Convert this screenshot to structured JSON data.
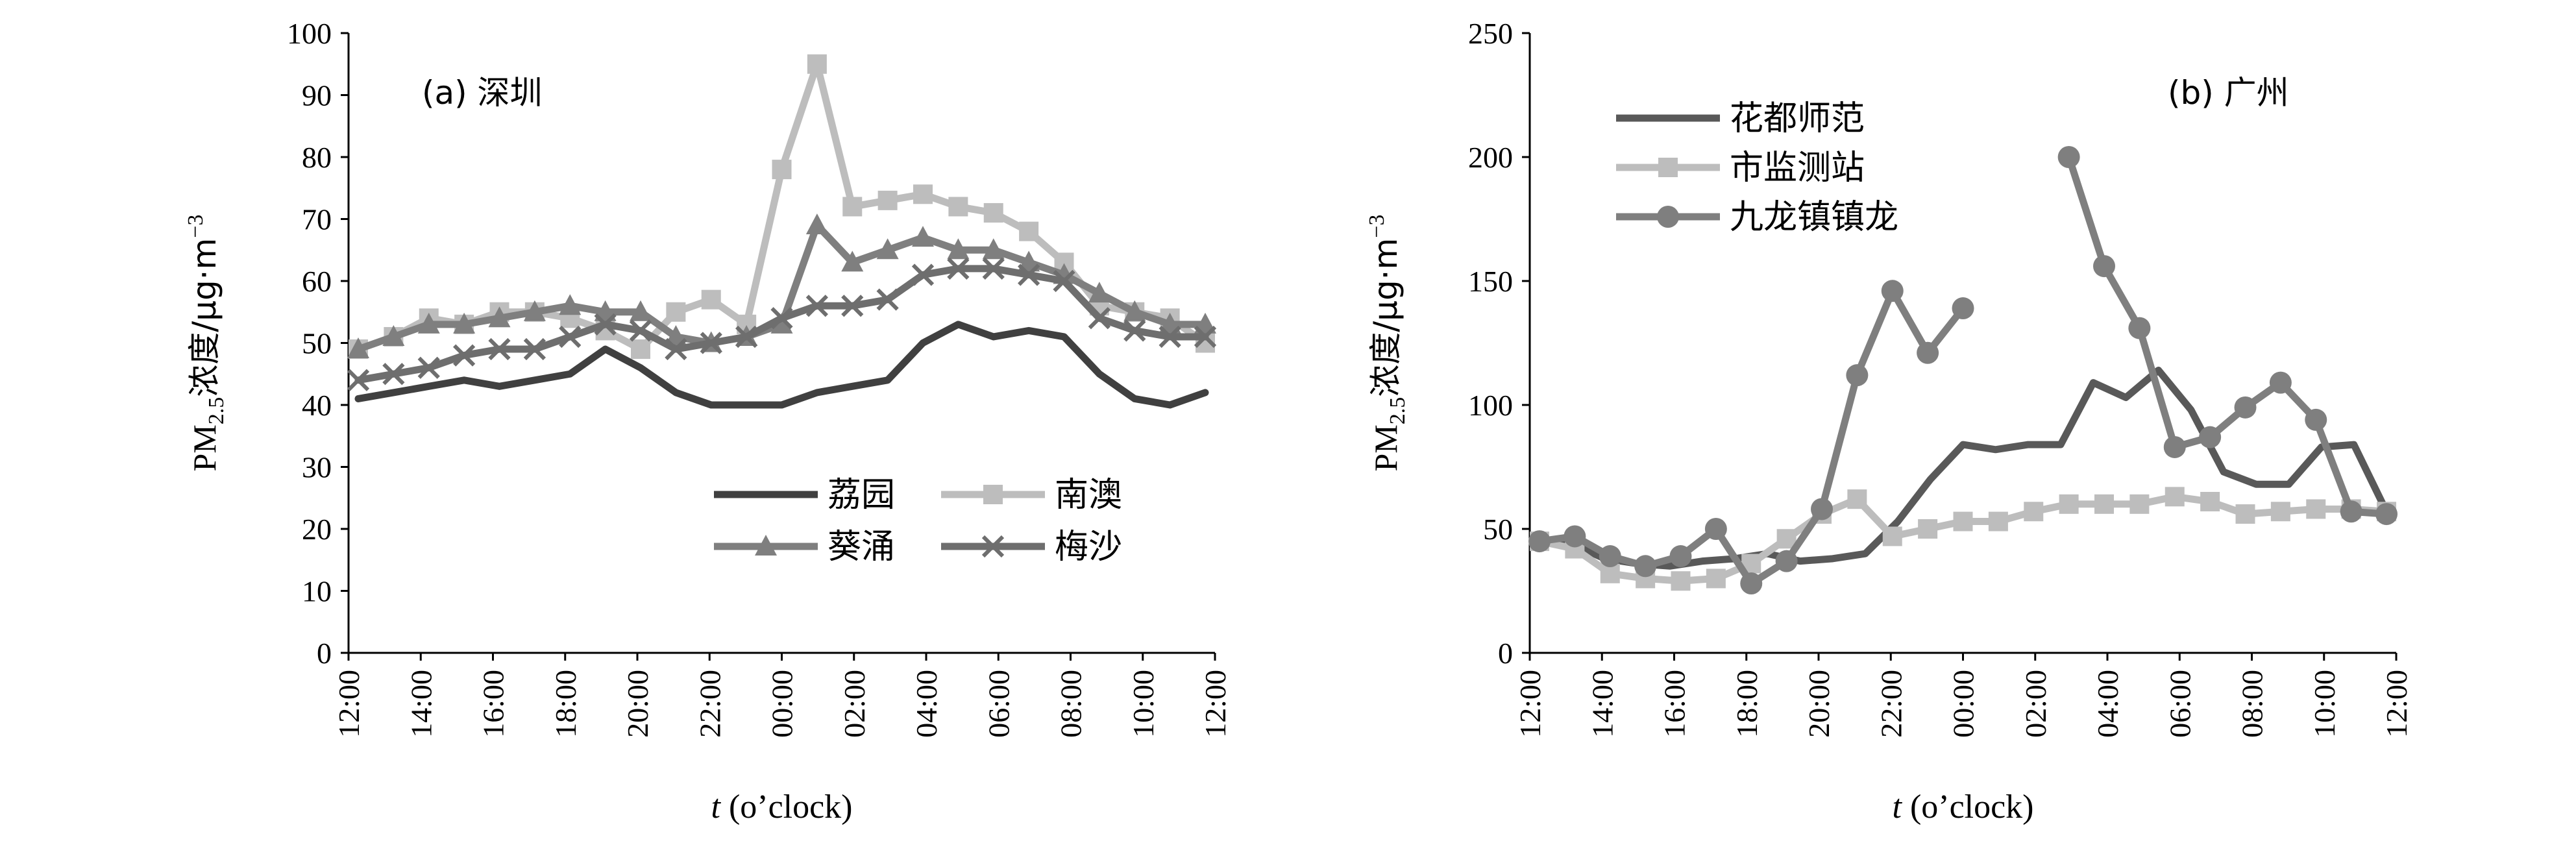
{
  "chart_data": [
    {
      "type": "line",
      "title": "(a) 深圳",
      "xlabel_italic": "t",
      "xlabel_rest": " (o’clock)",
      "ylabel_parts": [
        "PM",
        "2.5",
        "浓度/μg·m",
        "−3"
      ],
      "ylim": [
        0,
        100
      ],
      "yticks": [
        0,
        10,
        20,
        30,
        40,
        50,
        60,
        70,
        80,
        90,
        100
      ],
      "xtick_labels": [
        "12:00",
        "14:00",
        "16:00",
        "18:00",
        "20:00",
        "22:00",
        "00:00",
        "02:00",
        "04:00",
        "06:00",
        "08:00",
        "10:00",
        "12:00"
      ],
      "legend_position": "bottom-right",
      "series": [
        {
          "name": "荔园",
          "color": "#404040",
          "marker": "none",
          "values": [
            41,
            42,
            43,
            44,
            43,
            44,
            45,
            49,
            46,
            42,
            40,
            40,
            40,
            42,
            43,
            44,
            50,
            53,
            51,
            52,
            51,
            45,
            41,
            40,
            42
          ]
        },
        {
          "name": "南澳",
          "color": "#bdbdbd",
          "marker": "square",
          "values": [
            49,
            51,
            54,
            53,
            55,
            55,
            54,
            52,
            49,
            55,
            57,
            53,
            78,
            95,
            72,
            73,
            74,
            72,
            71,
            68,
            63,
            56,
            55,
            54,
            50
          ]
        },
        {
          "name": "葵涌",
          "color": "#7f7f7f",
          "marker": "triangle",
          "values": [
            49,
            51,
            53,
            53,
            54,
            55,
            56,
            55,
            55,
            51,
            50,
            51,
            53,
            69,
            63,
            65,
            67,
            65,
            65,
            63,
            61,
            58,
            55,
            53,
            53
          ]
        },
        {
          "name": "梅沙",
          "color": "#6e6e6e",
          "marker": "x",
          "values": [
            44,
            45,
            46,
            48,
            49,
            49,
            51,
            53,
            52,
            49,
            50,
            51,
            54,
            56,
            56,
            57,
            61,
            62,
            62,
            61,
            60,
            54,
            52,
            51,
            51
          ]
        }
      ]
    },
    {
      "type": "line",
      "title": "(b) 广州",
      "xlabel_italic": "t",
      "xlabel_rest": " (o’clock)",
      "ylabel_parts": [
        "PM",
        "2.5",
        "浓度/μg·m",
        "−3"
      ],
      "ylim": [
        0,
        250
      ],
      "yticks": [
        0,
        50,
        100,
        150,
        200,
        250
      ],
      "xtick_labels": [
        "12:00",
        "14:00",
        "16:00",
        "18:00",
        "20:00",
        "22:00",
        "00:00",
        "02:00",
        "04:00",
        "06:00",
        "08:00",
        "10:00",
        "12:00"
      ],
      "legend_position": "top-left",
      "series": [
        {
          "name": "花都师范",
          "color": "#595959",
          "marker": "none",
          "values": [
            45,
            44,
            38,
            36,
            35,
            37,
            38,
            40,
            37,
            38,
            40,
            53,
            70,
            84,
            82,
            84,
            84,
            109,
            103,
            114,
            98,
            73,
            68,
            68,
            83,
            84,
            57
          ]
        },
        {
          "name": "市监测站",
          "color": "#bdbdbd",
          "marker": "square",
          "values": [
            45,
            42,
            32,
            30,
            29,
            30,
            36,
            46,
            56,
            62,
            47,
            50,
            53,
            53,
            57,
            60,
            60,
            60,
            63,
            61,
            56,
            57,
            58,
            58,
            57
          ]
        },
        {
          "name": "九龙镇镇龙",
          "color": "#7f7f7f",
          "marker": "circle",
          "values": [
            45,
            47,
            39,
            35,
            39,
            50,
            28,
            37,
            58,
            112,
            146,
            121,
            139,
            null,
            null,
            200,
            156,
            131,
            83,
            87,
            99,
            109,
            94,
            57,
            56
          ]
        }
      ]
    }
  ]
}
